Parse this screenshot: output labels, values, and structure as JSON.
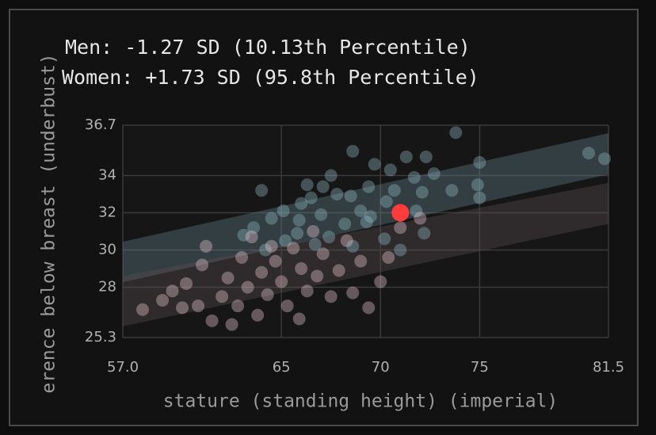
{
  "chart_data": {
    "type": "scatter",
    "title_lines": [
      "Men: -1.27 SD (10.13th Percentile)",
      "Women: +1.73 SD (95.8th Percentile)"
    ],
    "x_label": "stature (standing height) (imperial)",
    "y_label": "erence below breast (underbust)",
    "xlim": [
      57,
      81.5
    ],
    "ylim": [
      25.3,
      36.7
    ],
    "xticks": [
      {
        "value": 57,
        "label": "57.0"
      },
      65,
      70,
      75,
      81.5
    ],
    "yticks": [
      36.7,
      34,
      32,
      30,
      28,
      25.3
    ],
    "grid": true,
    "bands": [
      {
        "color": "#6a8a96",
        "x": [
          57,
          81.5
        ],
        "lower": [
          28.27,
          34.06
        ],
        "upper": [
          30.44,
          36.27
        ]
      },
      {
        "color": "#5e4f52",
        "x": [
          57,
          81.5
        ],
        "lower": [
          25.9,
          31.4
        ],
        "upper": [
          28.6,
          33.6
        ]
      }
    ],
    "series": [
      {
        "color": "#8fb9c6",
        "x": [
          80.5,
          81.3,
          73.8,
          68.6,
          72.3,
          71.3,
          69.7,
          70.5,
          71.7,
          72.7,
          75.0,
          74.9,
          75.0,
          73.6,
          72.1,
          70.7,
          69.4,
          68.5,
          67.8,
          67.1,
          66.5,
          66.0,
          65.1,
          64.5,
          63.6,
          63.1,
          65.9,
          67.0,
          68.2,
          69.5,
          70.3,
          69.0,
          71.8,
          64.0,
          65.8,
          67.4,
          66.7,
          68.6,
          70.2,
          69.3,
          65.2,
          64.2,
          71.0,
          72.2,
          66.3,
          67.5
        ],
        "y": [
          35.2,
          34.9,
          36.3,
          35.3,
          35.0,
          35.0,
          34.6,
          34.3,
          33.9,
          34.1,
          34.7,
          33.5,
          32.8,
          33.2,
          33.1,
          33.2,
          33.4,
          32.9,
          33.0,
          33.4,
          32.8,
          32.5,
          32.1,
          31.7,
          31.2,
          30.8,
          31.6,
          31.9,
          31.4,
          31.8,
          32.6,
          32.1,
          32.1,
          33.2,
          30.9,
          30.7,
          30.3,
          30.2,
          30.6,
          31.5,
          30.5,
          30.0,
          30.0,
          30.9,
          33.5,
          34.0
        ]
      },
      {
        "color": "#e8c9d2",
        "x": [
          58.0,
          59.0,
          59.5,
          60.2,
          60.8,
          61.0,
          61.5,
          62.0,
          62.3,
          62.8,
          63.0,
          63.3,
          63.8,
          64.0,
          64.3,
          64.7,
          65.0,
          65.3,
          65.6,
          66.0,
          66.3,
          66.8,
          67.1,
          67.5,
          67.9,
          68.3,
          68.6,
          69.0,
          69.4,
          70.0,
          70.4,
          71.0,
          72.0,
          61.2,
          63.5,
          65.9,
          62.5,
          60.0,
          64.5,
          66.6
        ],
        "y": [
          26.8,
          27.3,
          27.8,
          28.2,
          27.0,
          29.2,
          26.2,
          27.5,
          28.5,
          27.0,
          29.6,
          28.0,
          26.5,
          28.8,
          27.6,
          29.4,
          28.3,
          27.0,
          30.1,
          29.0,
          27.8,
          28.6,
          29.8,
          27.5,
          28.9,
          30.5,
          27.7,
          29.4,
          26.9,
          28.3,
          29.6,
          31.2,
          31.7,
          30.2,
          30.7,
          26.3,
          26.0,
          26.9,
          30.2,
          31.0
        ]
      }
    ],
    "highlight": {
      "x": 71.0,
      "y": 32.0,
      "color": "#ff3b3b"
    }
  }
}
